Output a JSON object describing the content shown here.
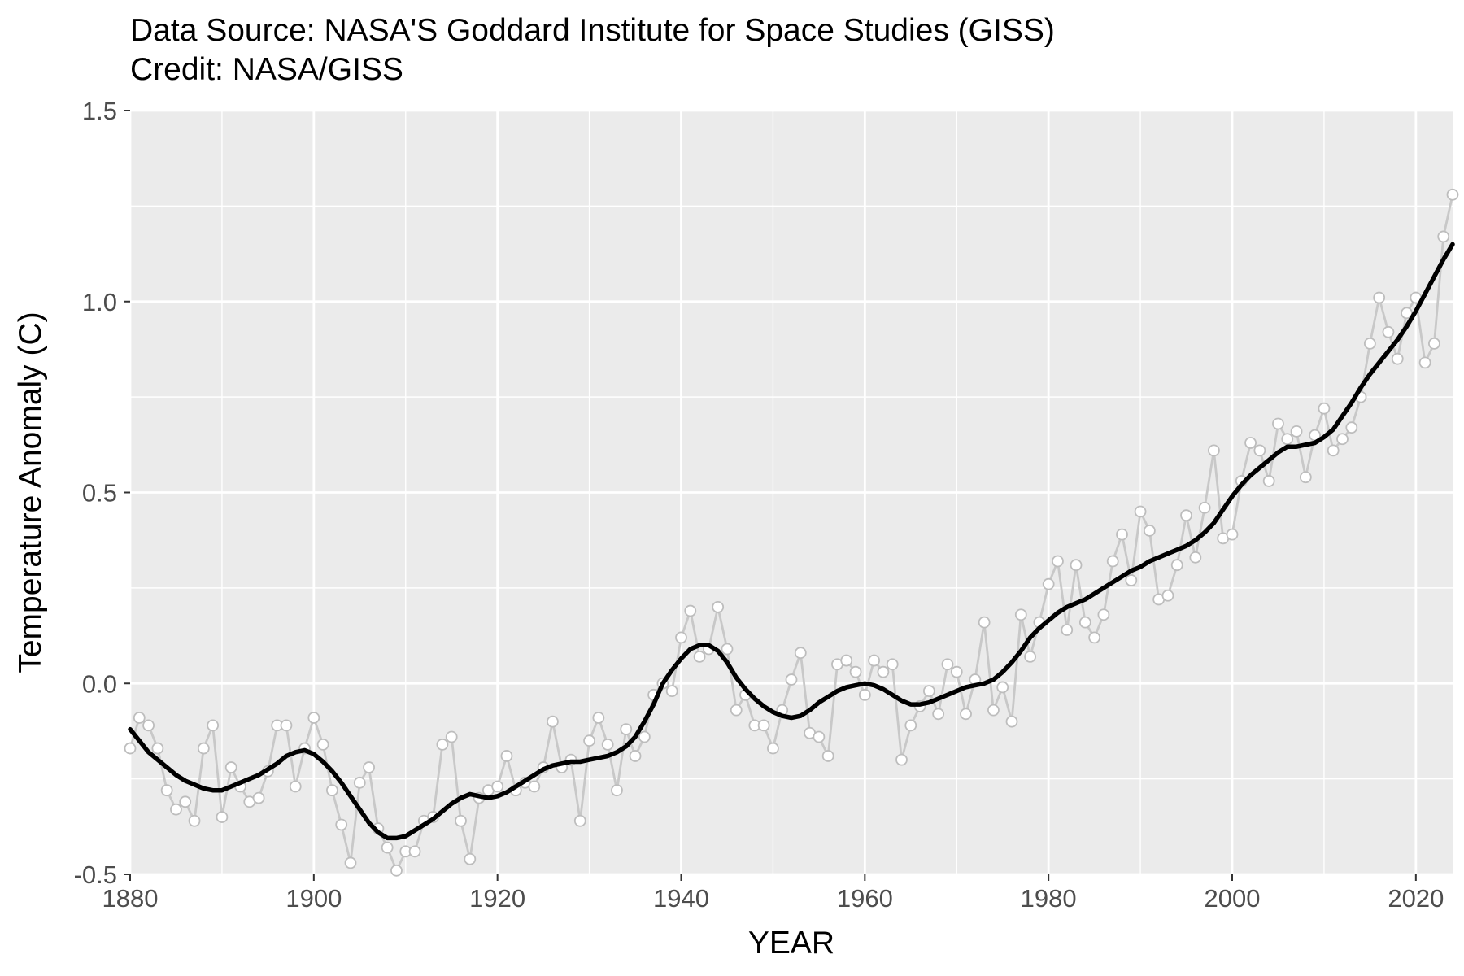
{
  "chart_data": {
    "type": "line",
    "title": "Data Source: NASA'S Goddard Institute for Space Studies (GISS)",
    "subtitle": "Credit: NASA/GISS",
    "xlabel": "YEAR",
    "ylabel": "Temperature Anomaly (C)",
    "xlim": [
      1880,
      2024
    ],
    "ylim": [
      -0.5,
      1.5
    ],
    "x_ticks": [
      1880,
      1900,
      1920,
      1940,
      1960,
      1980,
      2000,
      2020
    ],
    "y_ticks": [
      -0.5,
      0.0,
      0.5,
      1.0,
      1.5
    ],
    "y_tick_labels": [
      "-0.5",
      "0.0",
      "0.5",
      "1.0",
      "1.5"
    ],
    "grid": true,
    "legend": "none",
    "colors": {
      "panel": "#ebebeb",
      "grid": "#ffffff",
      "annual": "#c8c8c8",
      "smooth": "#000000",
      "point_fill": "#ffffff",
      "point_stroke": "#bdbdbd",
      "tick_label": "#4d4d4d"
    },
    "x": [
      1880,
      1881,
      1882,
      1883,
      1884,
      1885,
      1886,
      1887,
      1888,
      1889,
      1890,
      1891,
      1892,
      1893,
      1894,
      1895,
      1896,
      1897,
      1898,
      1899,
      1900,
      1901,
      1902,
      1903,
      1904,
      1905,
      1906,
      1907,
      1908,
      1909,
      1910,
      1911,
      1912,
      1913,
      1914,
      1915,
      1916,
      1917,
      1918,
      1919,
      1920,
      1921,
      1922,
      1923,
      1924,
      1925,
      1926,
      1927,
      1928,
      1929,
      1930,
      1931,
      1932,
      1933,
      1934,
      1935,
      1936,
      1937,
      1938,
      1939,
      1940,
      1941,
      1942,
      1943,
      1944,
      1945,
      1946,
      1947,
      1948,
      1949,
      1950,
      1951,
      1952,
      1953,
      1954,
      1955,
      1956,
      1957,
      1958,
      1959,
      1960,
      1961,
      1962,
      1963,
      1964,
      1965,
      1966,
      1967,
      1968,
      1969,
      1970,
      1971,
      1972,
      1973,
      1974,
      1975,
      1976,
      1977,
      1978,
      1979,
      1980,
      1981,
      1982,
      1983,
      1984,
      1985,
      1986,
      1987,
      1988,
      1989,
      1990,
      1991,
      1992,
      1993,
      1994,
      1995,
      1996,
      1997,
      1998,
      1999,
      2000,
      2001,
      2002,
      2003,
      2004,
      2005,
      2006,
      2007,
      2008,
      2009,
      2010,
      2011,
      2012,
      2013,
      2014,
      2015,
      2016,
      2017,
      2018,
      2019,
      2020,
      2021,
      2022,
      2023,
      2024
    ],
    "series": [
      {
        "values": [
          -0.17,
          -0.09,
          -0.11,
          -0.17,
          -0.28,
          -0.33,
          -0.31,
          -0.36,
          -0.17,
          -0.11,
          -0.35,
          -0.22,
          -0.27,
          -0.31,
          -0.3,
          -0.23,
          -0.11,
          -0.11,
          -0.27,
          -0.17,
          -0.09,
          -0.16,
          -0.28,
          -0.37,
          -0.47,
          -0.26,
          -0.22,
          -0.38,
          -0.43,
          -0.49,
          -0.44,
          -0.44,
          -0.36,
          -0.35,
          -0.16,
          -0.14,
          -0.36,
          -0.46,
          -0.3,
          -0.28,
          -0.27,
          -0.19,
          -0.28,
          -0.26,
          -0.27,
          -0.22,
          -0.1,
          -0.22,
          -0.2,
          -0.36,
          -0.15,
          -0.09,
          -0.16,
          -0.28,
          -0.12,
          -0.19,
          -0.14,
          -0.03,
          0.0,
          -0.02,
          0.12,
          0.19,
          0.07,
          0.09,
          0.2,
          0.09,
          -0.07,
          -0.03,
          -0.11,
          -0.11,
          -0.17,
          -0.07,
          0.01,
          0.08,
          -0.13,
          -0.14,
          -0.19,
          0.05,
          0.06,
          0.03,
          -0.03,
          0.06,
          0.03,
          0.05,
          -0.2,
          -0.11,
          -0.06,
          -0.02,
          -0.08,
          0.05,
          0.03,
          -0.08,
          0.01,
          0.16,
          -0.07,
          -0.01,
          -0.1,
          0.18,
          0.07,
          0.16,
          0.26,
          0.32,
          0.14,
          0.31,
          0.16,
          0.12,
          0.18,
          0.32,
          0.39,
          0.27,
          0.45,
          0.4,
          0.22,
          0.23,
          0.31,
          0.44,
          0.33,
          0.46,
          0.61,
          0.38,
          0.39,
          0.53,
          0.63,
          0.61,
          0.53,
          0.68,
          0.64,
          0.66,
          0.54,
          0.65,
          0.72,
          0.61,
          0.64,
          0.67,
          0.75,
          0.89,
          1.01,
          0.92,
          0.85,
          0.97,
          1.01,
          0.84,
          0.89,
          1.17,
          1.28
        ]
      },
      {
        "values": [
          -0.12,
          -0.15,
          -0.18,
          -0.2,
          -0.22,
          -0.24,
          -0.255,
          -0.265,
          -0.275,
          -0.28,
          -0.28,
          -0.27,
          -0.26,
          -0.25,
          -0.24,
          -0.225,
          -0.21,
          -0.19,
          -0.18,
          -0.175,
          -0.185,
          -0.205,
          -0.23,
          -0.26,
          -0.295,
          -0.33,
          -0.365,
          -0.39,
          -0.405,
          -0.405,
          -0.4,
          -0.385,
          -0.37,
          -0.355,
          -0.335,
          -0.315,
          -0.3,
          -0.29,
          -0.295,
          -0.3,
          -0.295,
          -0.285,
          -0.27,
          -0.255,
          -0.24,
          -0.225,
          -0.215,
          -0.21,
          -0.205,
          -0.205,
          -0.2,
          -0.195,
          -0.19,
          -0.18,
          -0.165,
          -0.14,
          -0.1,
          -0.055,
          0.0,
          0.035,
          0.065,
          0.09,
          0.1,
          0.1,
          0.085,
          0.055,
          0.015,
          -0.015,
          -0.04,
          -0.06,
          -0.075,
          -0.085,
          -0.09,
          -0.085,
          -0.07,
          -0.05,
          -0.035,
          -0.02,
          -0.01,
          -0.005,
          0.0,
          -0.005,
          -0.015,
          -0.03,
          -0.045,
          -0.055,
          -0.055,
          -0.05,
          -0.04,
          -0.03,
          -0.02,
          -0.01,
          -0.005,
          0.0,
          0.01,
          0.03,
          0.055,
          0.085,
          0.12,
          0.145,
          0.165,
          0.185,
          0.2,
          0.21,
          0.22,
          0.235,
          0.25,
          0.265,
          0.28,
          0.295,
          0.305,
          0.32,
          0.33,
          0.34,
          0.35,
          0.36,
          0.375,
          0.395,
          0.42,
          0.455,
          0.49,
          0.52,
          0.545,
          0.565,
          0.585,
          0.605,
          0.62,
          0.62,
          0.625,
          0.63,
          0.645,
          0.665,
          0.7,
          0.735,
          0.775,
          0.81,
          0.84,
          0.87,
          0.9,
          0.935,
          0.975,
          1.02,
          1.065,
          1.11,
          1.15
        ]
      }
    ]
  }
}
